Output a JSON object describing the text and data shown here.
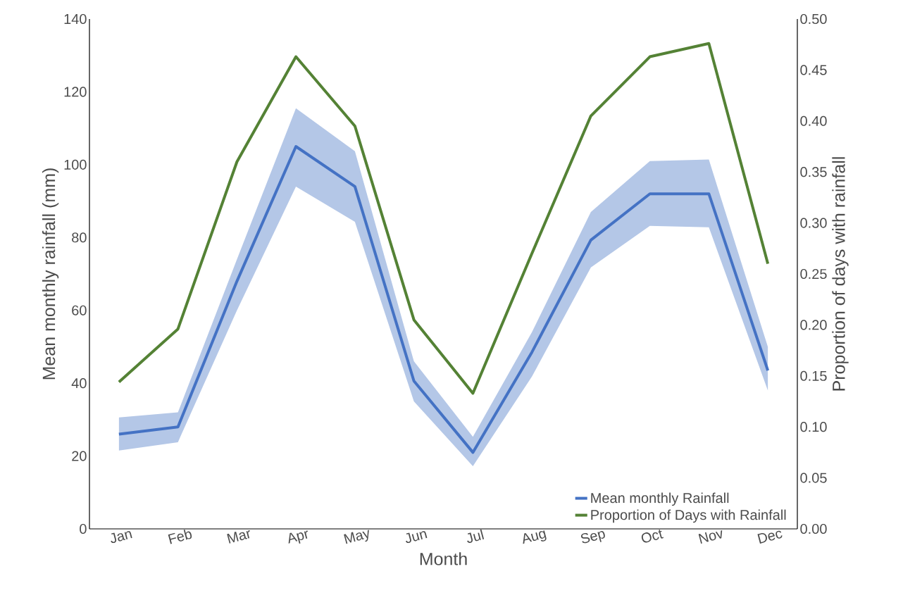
{
  "chart_data": {
    "type": "line",
    "xlabel": "Month",
    "ylabel": "Mean monthly rainfall (mm)",
    "y2label": "Proportion of days with rainfall",
    "categories": [
      "Jan",
      "Feb",
      "Mar",
      "Apr",
      "May",
      "Jun",
      "Jul",
      "Aug",
      "Sep",
      "Oct",
      "Nov",
      "Dec"
    ],
    "series": [
      {
        "name": "Mean monthly Rainfall",
        "color": "#4472c4",
        "values": [
          26,
          28,
          68,
          105,
          94,
          40.6,
          21,
          48.5,
          79.3,
          92,
          92,
          43.5
        ],
        "lower": [
          21.5,
          23.8,
          60,
          94,
          84.3,
          35,
          17.2,
          41.8,
          71.8,
          83.2,
          82.8,
          38
        ],
        "upper": [
          30.6,
          32,
          74,
          115.5,
          103.7,
          46,
          25.3,
          54,
          87,
          101,
          101.4,
          50
        ]
      },
      {
        "name": "Proportion of Days with Rainfall",
        "color": "#548235",
        "axis": "y2",
        "values": [
          0.144,
          0.196,
          0.36,
          0.463,
          0.395,
          0.205,
          0.133,
          0.27,
          0.405,
          0.463,
          0.476,
          0.26
        ]
      }
    ],
    "ylim": [
      0,
      140
    ],
    "yticks": [
      0,
      20,
      40,
      60,
      80,
      100,
      120,
      140
    ],
    "y2lim": [
      0,
      0.5
    ],
    "y2ticks": [
      {
        "value": 0,
        "label": "0.00"
      },
      {
        "value": 0.05,
        "label": "0.05"
      },
      {
        "value": 0.1,
        "label": "0.10"
      },
      {
        "value": 0.15,
        "label": "0.15"
      },
      {
        "value": 0.2,
        "label": "0.20"
      },
      {
        "value": 0.25,
        "label": "0.25"
      },
      {
        "value": 0.3,
        "label": "0.30"
      },
      {
        "value": 0.35,
        "label": "0.35"
      },
      {
        "value": 0.4,
        "label": "0.40"
      },
      {
        "value": 0.45,
        "label": "0.45"
      },
      {
        "value": 0.5,
        "label": "0.50"
      }
    ],
    "legend": "bottom right",
    "grid": false,
    "line_style": "solid",
    "marker": "none"
  }
}
